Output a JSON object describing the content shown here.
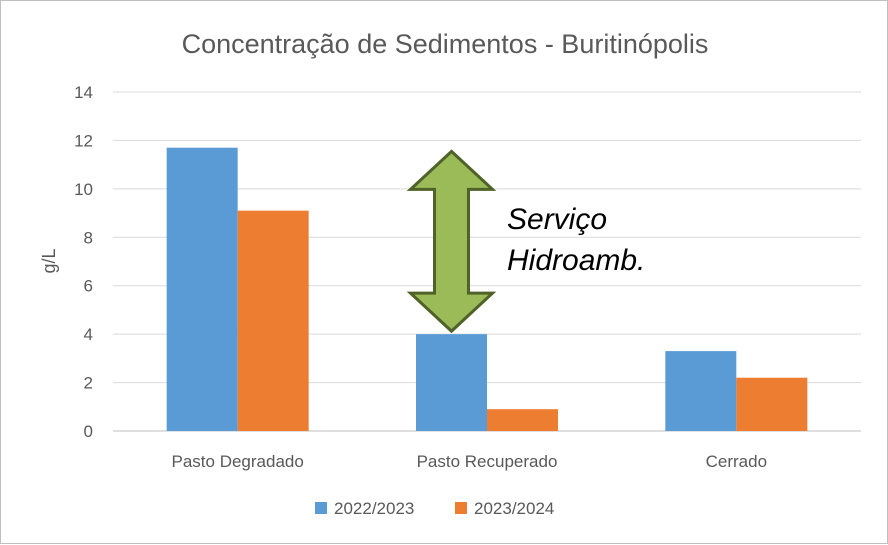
{
  "chart_data": {
    "type": "bar",
    "title": "Concentração de Sedimentos - Buritinópolis",
    "ylabel": "g/L",
    "xlabel": "",
    "ylim": [
      0,
      14
    ],
    "yticks": [
      "0",
      "2",
      "4",
      "6",
      "8",
      "10",
      "12",
      "14"
    ],
    "grid": true,
    "legend_position": "bottom",
    "categories": [
      "Pasto Degradado",
      "Pasto Recuperado",
      "Cerrado"
    ],
    "series": [
      {
        "name": "2022/2023",
        "values": [
          11.7,
          4.0,
          3.3
        ],
        "color": "#5B9BD5"
      },
      {
        "name": "2023/2024",
        "values": [
          9.1,
          0.9,
          2.2
        ],
        "color": "#ED7D31"
      }
    ],
    "annotation": {
      "lines": [
        "Serviço",
        "Hidroamb."
      ],
      "arrow_color": "#9BBB59",
      "arrow_outline": "#4F6228",
      "arrow_icon": "double-arrow-icon",
      "arrow_span": [
        4.0,
        11.3
      ]
    }
  }
}
